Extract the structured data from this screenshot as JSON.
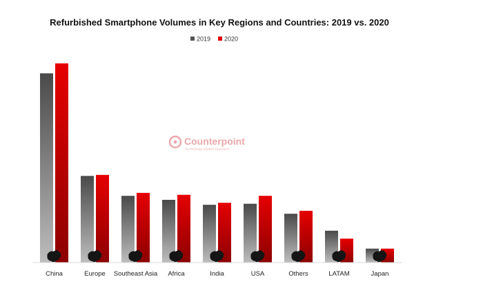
{
  "chart_data": {
    "type": "bar",
    "title": "Refurbished Smartphone Volumes in Key Regions and Countries: 2019 vs. 2020",
    "xlabel": "",
    "ylabel": "",
    "ylim": [
      0,
      100
    ],
    "grid": false,
    "legend_position": "top-center",
    "categories": [
      "China",
      "Europe",
      "Southeast Asia",
      "Africa",
      "India",
      "USA",
      "Others",
      "LATAM",
      "Japan"
    ],
    "series": [
      {
        "name": "2019",
        "color": "#555555",
        "values": [
          95,
          43.5,
          33.5,
          31.5,
          29,
          29.5,
          24.5,
          16,
          7
        ]
      },
      {
        "name": "2020",
        "color": "#e00000",
        "values": [
          100,
          44,
          35,
          34,
          30,
          33.5,
          26,
          12,
          7
        ]
      }
    ]
  },
  "watermark": {
    "brand": "Counterpoint",
    "tagline": "Technology Market Research",
    "color": "#e8a0a3"
  }
}
